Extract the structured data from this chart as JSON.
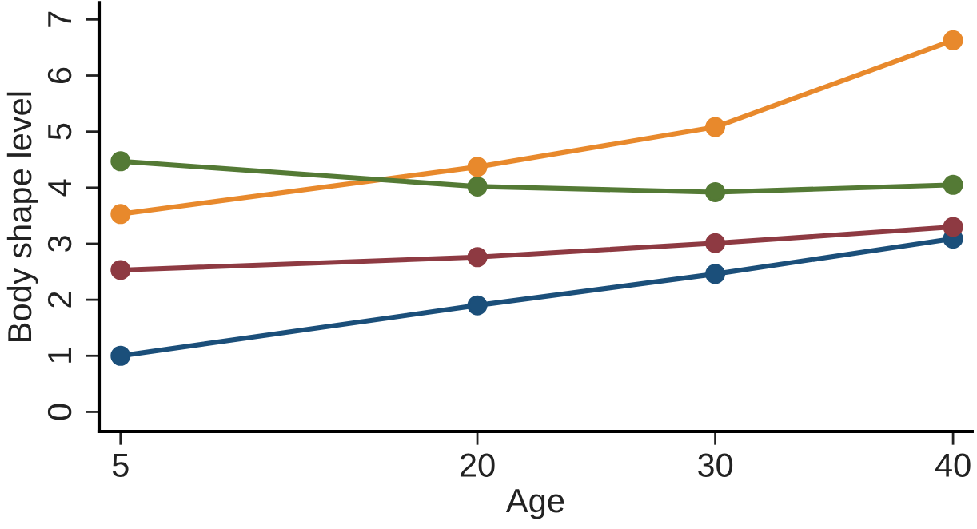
{
  "chart_data": {
    "type": "line",
    "xlabel": "Age",
    "ylabel": "Body shape level",
    "x": [
      5,
      20,
      30,
      40
    ],
    "series": [
      {
        "color": "#1b4f7a",
        "values": [
          1.0,
          1.9,
          2.46,
          3.09
        ]
      },
      {
        "color": "#8e3a42",
        "values": [
          2.53,
          2.76,
          3.01,
          3.3
        ]
      },
      {
        "color": "#e8892c",
        "values": [
          3.53,
          4.37,
          5.08,
          6.63
        ]
      },
      {
        "color": "#547a35",
        "values": [
          4.47,
          4.02,
          3.92,
          4.05
        ]
      }
    ],
    "xlim": [
      4.1,
      40.8
    ],
    "xticks": [
      5,
      20,
      30,
      40
    ],
    "ylim": [
      -0.35,
      7.3
    ],
    "yticks": [
      0,
      1,
      2,
      3,
      4,
      5,
      6,
      7
    ],
    "marker": "circle",
    "line_style": "solid",
    "grid": false,
    "legend": false
  }
}
